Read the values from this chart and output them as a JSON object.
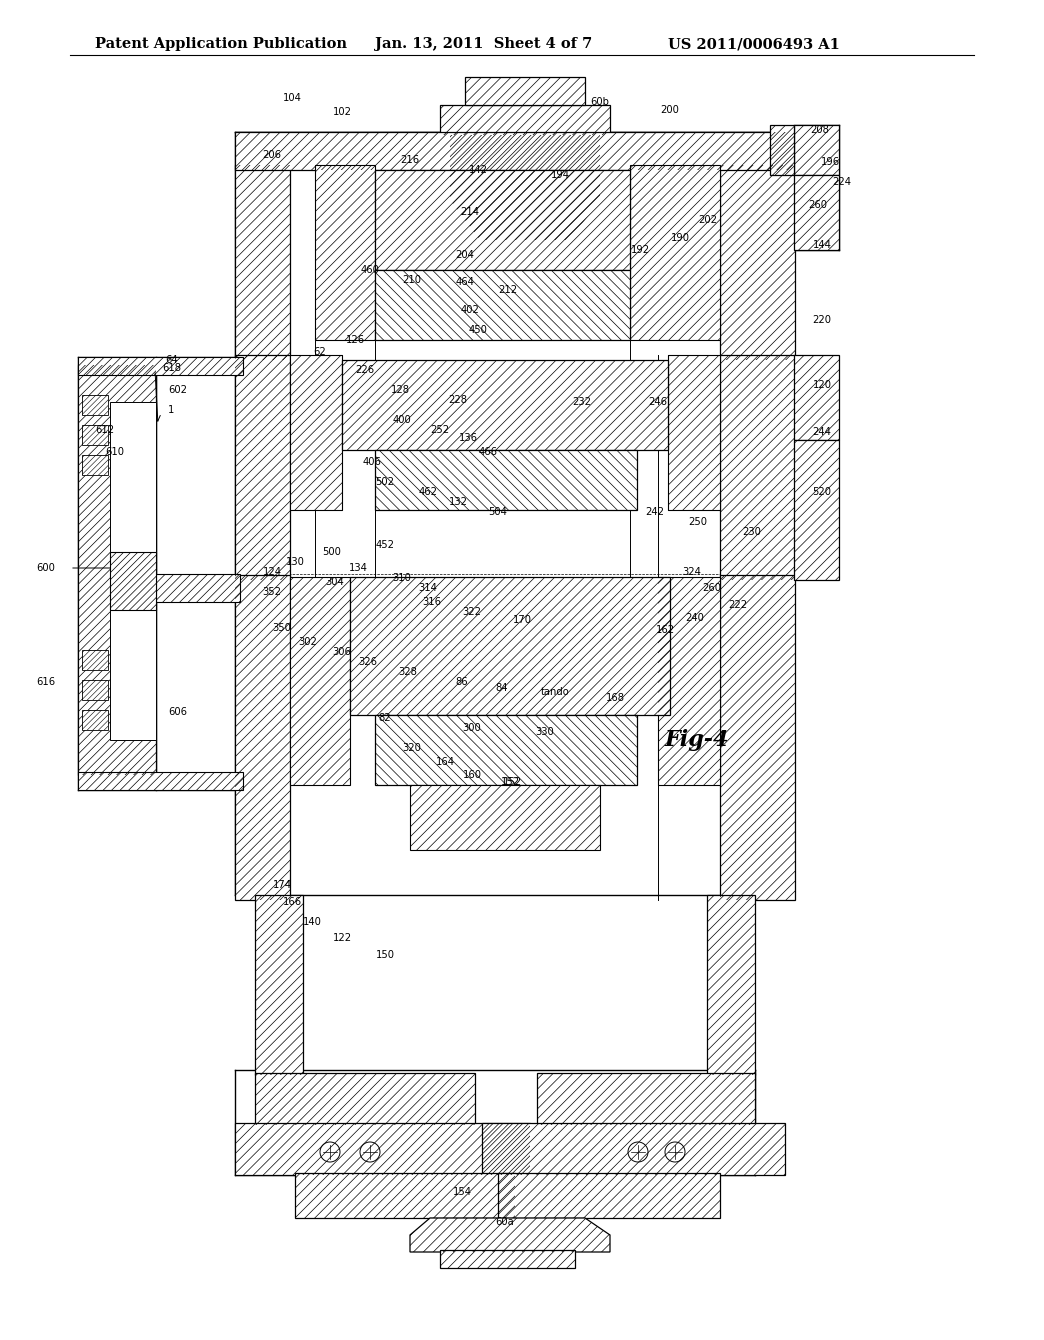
{
  "header_left": "Patent Application Publication",
  "header_mid": "Jan. 13, 2011  Sheet 4 of 7",
  "header_right": "US 2011/0006493 A1",
  "fig_label": "Fig-4",
  "background_color": "#ffffff",
  "line_color": "#000000",
  "header_fontsize": 10.5,
  "fig_label_fontsize": 16
}
